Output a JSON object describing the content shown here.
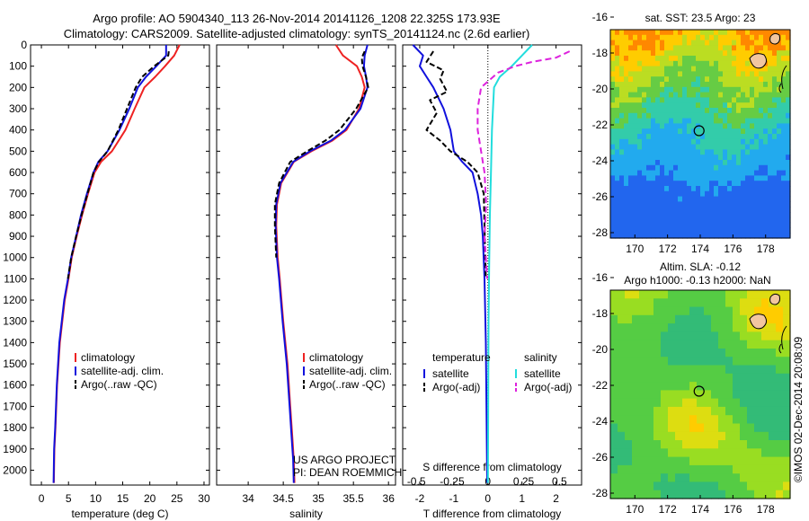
{
  "header": {
    "line1": "Argo profile: AO 5904340_113 26-Nov-2014 20141126_1208 22.325S 173.93E",
    "line2": "Climatology: CARS2009. Satellite-adjusted climatology: synTS_20141124.nc (2.6d earlier)"
  },
  "depth_ticks": [
    "0",
    "100",
    "200",
    "300",
    "400",
    "500",
    "600",
    "700",
    "800",
    "900",
    "1000",
    "1100",
    "1200",
    "1300",
    "1400",
    "1500",
    "1600",
    "1700",
    "1800",
    "1900",
    "2000"
  ],
  "colors": {
    "climatology": "#ee2222",
    "satellite": "#1111dd",
    "argo": "#000000",
    "sal_sat": "#22dddd",
    "sal_argo": "#dd22dd"
  },
  "credit": {
    "project": "US ARGO PROJECT",
    "pi": "PI: DEAN ROEMMICH",
    "imos": "©IMOS 02-Dec-2014 20:08:09"
  },
  "chart_data": [
    {
      "type": "line",
      "xlabel": "temperature (deg C)",
      "xticks": [
        "0",
        "5",
        "10",
        "15",
        "20",
        "25",
        "30"
      ],
      "xlim": [
        -2,
        31
      ],
      "ylim": [
        2070,
        0
      ],
      "legend": [
        "climatology",
        "satellite-adj. clim.",
        "Argo(..raw -QC)"
      ],
      "series": [
        {
          "key": "clim",
          "name": "climatology",
          "x": [
            25.5,
            24.5,
            22.8,
            21.0,
            19.0,
            17.2,
            15.5,
            13.0,
            11.0,
            9.8,
            8.6,
            7.5,
            6.5,
            5.6,
            5.0,
            4.3,
            3.4,
            2.9,
            2.6,
            2.4,
            2.3
          ],
          "y": [
            0,
            50,
            100,
            150,
            200,
            300,
            400,
            500,
            550,
            600,
            700,
            800,
            900,
            1000,
            1100,
            1200,
            1400,
            1600,
            1800,
            1900,
            2060
          ]
        },
        {
          "key": "sat",
          "name": "satellite-adj. clim.",
          "x": [
            23.0,
            23.0,
            21.2,
            19.3,
            17.8,
            16.2,
            14.4,
            12.2,
            10.5,
            9.6,
            8.4,
            7.3,
            6.4,
            5.5,
            4.9,
            4.2,
            3.3,
            2.85,
            2.55,
            2.35,
            2.25
          ],
          "y": [
            0,
            50,
            100,
            150,
            200,
            300,
            400,
            500,
            550,
            600,
            700,
            800,
            900,
            1000,
            1100,
            1200,
            1400,
            1600,
            1800,
            1900,
            2060
          ]
        },
        {
          "key": "argo",
          "name": "Argo(..raw -QC)",
          "x": [
            23.5,
            23.4,
            20.8,
            18.6,
            17.4,
            15.8,
            14.2,
            12.2,
            10.6,
            9.6,
            8.5,
            7.4,
            6.4,
            5.5,
            4.9
          ],
          "y": [
            30,
            50,
            100,
            150,
            200,
            300,
            400,
            500,
            550,
            600,
            700,
            800,
            900,
            1000,
            1100
          ]
        }
      ]
    },
    {
      "type": "line",
      "xlabel": "salinity",
      "xticks": [
        "34",
        "34.5",
        "35",
        "35.5",
        "36"
      ],
      "xlim": [
        33.55,
        36.1
      ],
      "ylim": [
        2070,
        0
      ],
      "legend": [
        "climatology",
        "satellite-adj. clim.",
        "Argo(..raw -QC)"
      ],
      "series": [
        {
          "key": "clim",
          "name": "climatology",
          "x": [
            35.25,
            35.35,
            35.55,
            35.62,
            35.66,
            35.58,
            35.4,
            35.2,
            34.9,
            34.65,
            34.47,
            34.41,
            34.4,
            34.42,
            34.45,
            34.5,
            34.56,
            34.6,
            34.63,
            34.65,
            34.66
          ],
          "y": [
            0,
            50,
            100,
            150,
            200,
            300,
            400,
            450,
            500,
            550,
            650,
            750,
            850,
            1000,
            1100,
            1300,
            1500,
            1700,
            1850,
            1950,
            2060
          ]
        },
        {
          "key": "sat",
          "name": "satellite-adj. clim.",
          "x": [
            35.7,
            35.66,
            35.65,
            35.68,
            35.7,
            35.6,
            35.38,
            35.18,
            34.88,
            34.64,
            34.46,
            34.4,
            34.39,
            34.41,
            34.44,
            34.49,
            34.55,
            34.59,
            34.62,
            34.64,
            34.65
          ],
          "y": [
            0,
            50,
            100,
            150,
            200,
            300,
            400,
            450,
            500,
            550,
            650,
            750,
            850,
            1000,
            1100,
            1300,
            1500,
            1700,
            1850,
            1950,
            2060
          ]
        },
        {
          "key": "argo",
          "name": "Argo(..raw -QC)",
          "x": [
            35.66,
            35.62,
            35.63,
            35.68,
            35.71,
            35.54,
            35.3,
            35.1,
            34.84,
            34.6,
            34.44,
            34.38,
            34.38,
            34.4
          ],
          "y": [
            30,
            60,
            100,
            150,
            200,
            300,
            400,
            450,
            500,
            550,
            650,
            750,
            850,
            1000
          ]
        }
      ]
    },
    {
      "type": "line",
      "xlabel": "T difference from climatology",
      "x2label": "S difference from climatology",
      "xticks": [
        "-2",
        "-1",
        "0",
        "1",
        "2"
      ],
      "x2ticks": [
        "-0.5",
        "-0.25",
        "0",
        "0.25",
        "0.5"
      ],
      "xlim": [
        -2.5,
        2.75
      ],
      "ylim": [
        2070,
        0
      ],
      "legend_left_title": "temperature",
      "legend_right_title": "salinity",
      "legend_left": [
        "satellite",
        "Argo(-adj)"
      ],
      "legend_right": [
        "satellite",
        "Argo(-adj)"
      ],
      "series": [
        {
          "key": "tsat",
          "name": "satellite",
          "x": [
            -2.2,
            -1.9,
            -2.0,
            -1.8,
            -1.6,
            -1.3,
            -1.1,
            -1.0,
            -0.75,
            -0.45,
            -0.3,
            -0.2,
            -0.15,
            -0.1,
            -0.06,
            -0.04,
            -0.02
          ],
          "y": [
            0,
            50,
            100,
            150,
            200,
            300,
            400,
            500,
            550,
            600,
            700,
            800,
            900,
            1100,
            1400,
            1700,
            2060
          ]
        },
        {
          "key": "targo",
          "name": "Argo(-adj)",
          "x": [
            -1.6,
            -1.8,
            -1.3,
            -1.4,
            -1.2,
            -1.7,
            -1.5,
            -1.8,
            -1.4,
            -1.1,
            -0.6,
            -0.3,
            -0.12,
            -0.1,
            -0.06
          ],
          "y": [
            30,
            80,
            120,
            160,
            220,
            260,
            320,
            400,
            450,
            500,
            550,
            600,
            700,
            850,
            1100
          ]
        },
        {
          "key": "ssat",
          "name": "satellite",
          "x": [
            1.3,
            1.0,
            0.7,
            0.35,
            0.18,
            0.12,
            0.09,
            0.06,
            0.04,
            0.02,
            0.0
          ],
          "y": [
            0,
            50,
            100,
            150,
            200,
            400,
            600,
            800,
            1000,
            1300,
            2060
          ]
        },
        {
          "key": "sargo",
          "name": "Argo(-adj)",
          "x": [
            2.4,
            2.0,
            1.3,
            0.8,
            0.3,
            -0.2,
            -0.3,
            -0.3,
            -0.2,
            -0.1,
            -0.05,
            -0.1,
            -0.02
          ],
          "y": [
            30,
            60,
            80,
            100,
            130,
            200,
            300,
            400,
            500,
            600,
            750,
            900,
            1100
          ]
        }
      ]
    },
    {
      "type": "heatmap",
      "title": "sat. SST: 23.5 Argo: 23",
      "xticks": [
        "170",
        "172",
        "174",
        "176",
        "178"
      ],
      "yticks": [
        "-16",
        "-18",
        "-20",
        "-22",
        "-24",
        "-26",
        "-28"
      ],
      "xlim": [
        168.5,
        179.5
      ],
      "ylim": [
        -28.3,
        -16.7
      ],
      "argo_position": [
        173.93,
        -22.325
      ]
    },
    {
      "type": "heatmap",
      "title": "Altim. SLA: -0.12",
      "subtitle": "Argo h1000: -0.13 h2000: NaN",
      "xticks": [
        "170",
        "172",
        "174",
        "176",
        "178"
      ],
      "yticks": [
        "-16",
        "-18",
        "-20",
        "-22",
        "-24",
        "-26",
        "-28"
      ],
      "xlim": [
        168.5,
        179.5
      ],
      "ylim": [
        -28.3,
        -16.7
      ],
      "argo_position": [
        173.93,
        -22.325
      ]
    }
  ]
}
